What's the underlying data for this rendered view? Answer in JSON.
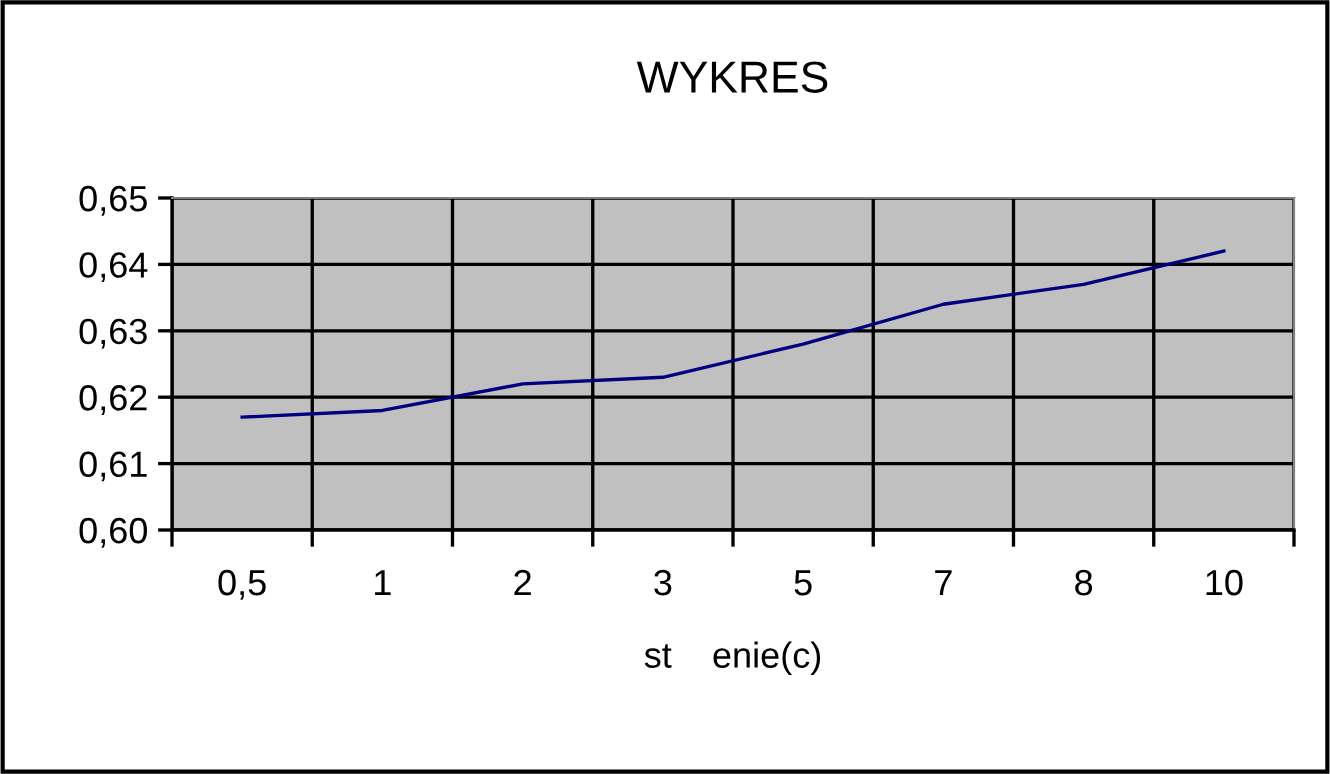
{
  "chart_data": {
    "type": "line",
    "title": "WYKRES",
    "xlabel": "st    enie(c)",
    "categories": [
      "0,5",
      "1",
      "2",
      "3",
      "5",
      "7",
      "8",
      "10"
    ],
    "series": [
      {
        "color": "#000080",
        "values": [
          0.617,
          0.618,
          0.622,
          0.623,
          0.628,
          0.634,
          0.637,
          0.642
        ]
      }
    ],
    "ylim": [
      0.6,
      0.65
    ],
    "yticks": [
      {
        "value": 0.6,
        "label": "0,60"
      },
      {
        "value": 0.61,
        "label": "0,61"
      },
      {
        "value": 0.62,
        "label": "0,62"
      },
      {
        "value": 0.63,
        "label": "0,63"
      },
      {
        "value": 0.64,
        "label": "0,64"
      },
      {
        "value": 0.65,
        "label": "0,65"
      }
    ],
    "grid": true,
    "marker": "none",
    "line_style": "solid",
    "legend": false
  }
}
